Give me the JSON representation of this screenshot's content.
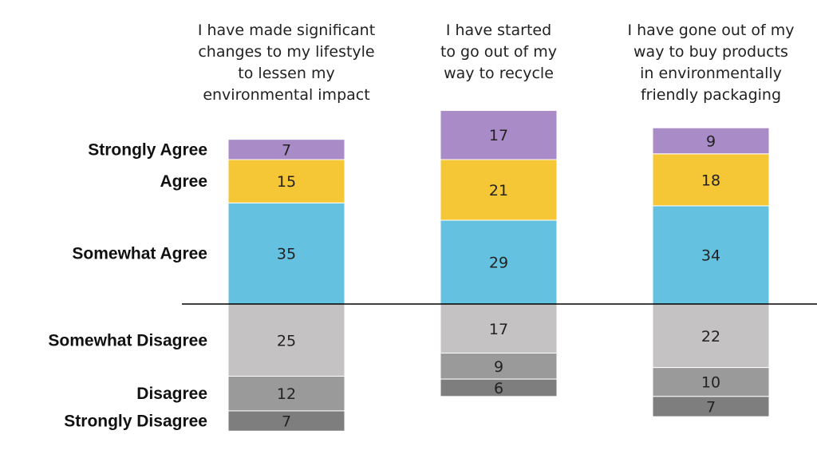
{
  "chart_data": {
    "type": "bar",
    "stacked": "diverging",
    "baseline": "between Somewhat Agree and Somewhat Disagree",
    "categories": [
      [
        "I have made significant",
        "changes to my lifestyle",
        "to lessen my",
        "environmental impact"
      ],
      [
        "I have started",
        "to go out of my",
        "way to recycle"
      ],
      [
        "I have gone out of my",
        "way to buy products",
        "in environmentally",
        "friendly packaging"
      ]
    ],
    "series": [
      {
        "name": "Strongly Agree",
        "side": "agree",
        "color": "#A98BC8",
        "values": [
          7,
          17,
          9
        ]
      },
      {
        "name": "Agree",
        "side": "agree",
        "color": "#F5C636",
        "values": [
          15,
          21,
          18
        ]
      },
      {
        "name": "Somewhat Agree",
        "side": "agree",
        "color": "#65C1E0",
        "values": [
          35,
          29,
          34
        ]
      },
      {
        "name": "Somewhat Disagree",
        "side": "disagree",
        "color": "#C4C2C3",
        "values": [
          25,
          17,
          22
        ]
      },
      {
        "name": "Disagree",
        "side": "disagree",
        "color": "#9A9A9A",
        "values": [
          12,
          9,
          10
        ]
      },
      {
        "name": "Strongly Disagree",
        "side": "disagree",
        "color": "#7E7E7E",
        "values": [
          7,
          6,
          7
        ]
      }
    ],
    "ylim": [
      -45,
      70
    ],
    "grid": false,
    "legend": "left"
  }
}
